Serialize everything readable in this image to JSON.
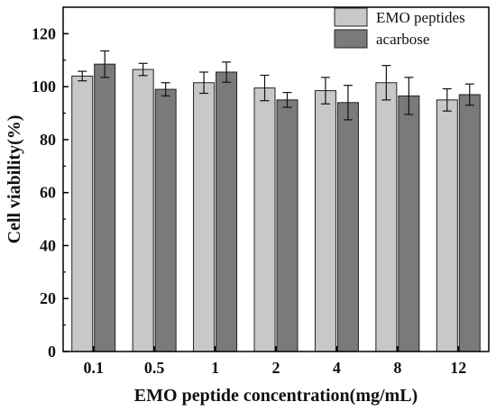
{
  "chart_data": {
    "type": "bar",
    "categories": [
      "0.1",
      "0.5",
      "1",
      "2",
      "4",
      "8",
      "12"
    ],
    "series": [
      {
        "name": "EMO peptides",
        "values": [
          104,
          106.5,
          101.5,
          99.5,
          98.5,
          101.5,
          95
        ],
        "errors": [
          1.8,
          2.3,
          4.0,
          4.8,
          5.0,
          6.5,
          4.2
        ],
        "color": "#c8c8c8"
      },
      {
        "name": "acarbose",
        "values": [
          108.5,
          99,
          105.5,
          95,
          94,
          96.5,
          97
        ],
        "errors": [
          5.0,
          2.5,
          3.8,
          2.8,
          6.5,
          7.0,
          4.0
        ],
        "color": "#7a7a7a"
      }
    ],
    "title": "",
    "xlabel": "EMO peptide concentration(mg/mL)",
    "ylabel": "Cell viability(%)",
    "ylim": [
      0,
      130
    ],
    "yticks": [
      0,
      20,
      40,
      60,
      80,
      100,
      120
    ],
    "grid": false,
    "legend_position": "top-right"
  }
}
